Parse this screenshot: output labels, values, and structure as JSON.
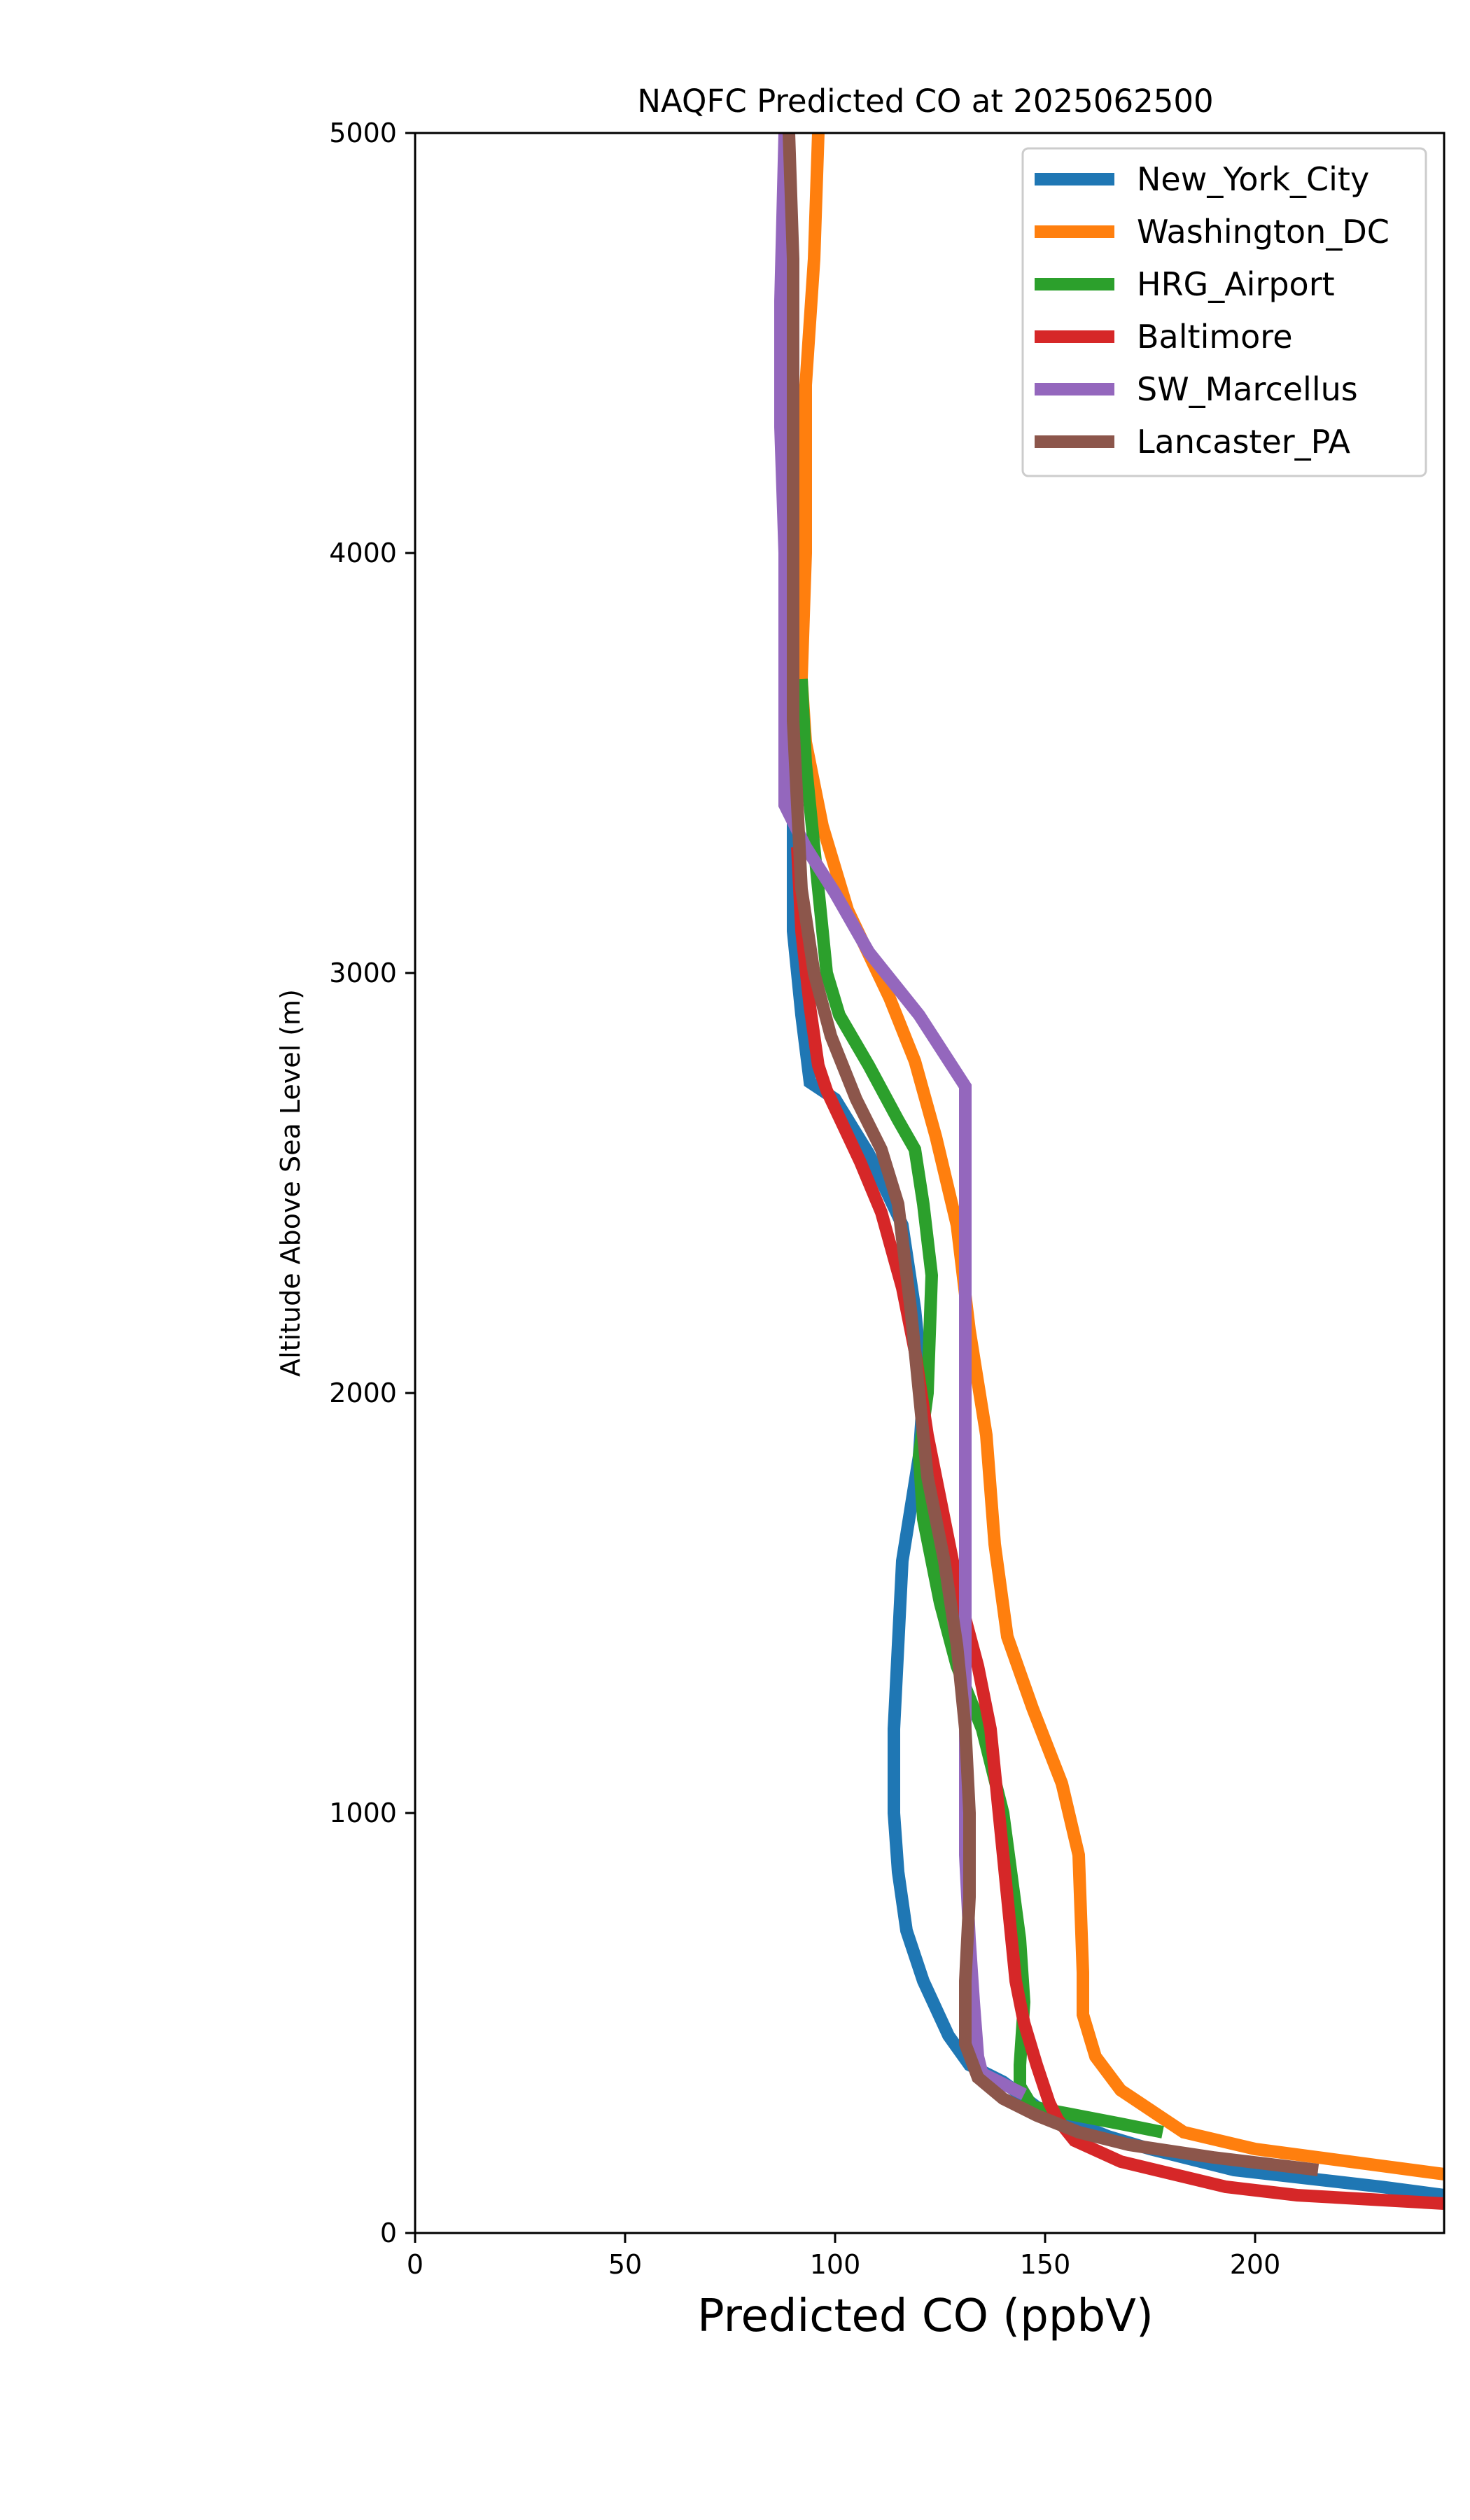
{
  "chart_data": {
    "type": "line",
    "title": "NAQFC Predicted CO at 2025062500",
    "xlabel": "Predicted CO (ppbV)",
    "ylabel": "Altitude Above Sea Level (m)",
    "xlim": [
      0,
      245
    ],
    "ylim": [
      0,
      5000
    ],
    "x_ticks": [
      0,
      50,
      100,
      150,
      200
    ],
    "y_ticks": [
      0,
      1000,
      2000,
      3000,
      4000,
      5000
    ],
    "x_tick_labels": [
      "0",
      "50",
      "100",
      "150",
      "200"
    ],
    "y_tick_labels": [
      "0",
      "1000",
      "2000",
      "3000",
      "4000",
      "5000"
    ],
    "grid": false,
    "legend_position": "top-right",
    "series": [
      {
        "name": "New_York_City",
        "color": "#1f77b4",
        "points": [
          [
            245,
            90
          ],
          [
            230,
            110
          ],
          [
            195,
            150
          ],
          [
            175,
            200
          ],
          [
            165,
            230
          ],
          [
            155,
            270
          ],
          [
            148,
            300
          ],
          [
            140,
            360
          ],
          [
            132,
            400
          ],
          [
            127,
            470
          ],
          [
            121,
            600
          ],
          [
            117,
            720
          ],
          [
            115,
            860
          ],
          [
            114,
            1000
          ],
          [
            114,
            1200
          ],
          [
            115,
            1400
          ],
          [
            116,
            1600
          ],
          [
            120,
            1850
          ],
          [
            121,
            2000
          ],
          [
            119,
            2200
          ],
          [
            116,
            2400
          ],
          [
            108,
            2570
          ],
          [
            100,
            2700
          ],
          [
            94,
            2740
          ],
          [
            92,
            2900
          ],
          [
            90,
            3100
          ],
          [
            90,
            3400
          ]
        ]
      },
      {
        "name": "Washington_DC",
        "color": "#ff7f0e",
        "points": [
          [
            245,
            140
          ],
          [
            230,
            160
          ],
          [
            200,
            200
          ],
          [
            183,
            240
          ],
          [
            168,
            340
          ],
          [
            162,
            420
          ],
          [
            159,
            520
          ],
          [
            159,
            620
          ],
          [
            158,
            900
          ],
          [
            154,
            1070
          ],
          [
            147,
            1250
          ],
          [
            141,
            1420
          ],
          [
            138,
            1640
          ],
          [
            136,
            1900
          ],
          [
            132,
            2150
          ],
          [
            129,
            2400
          ],
          [
            124,
            2610
          ],
          [
            119,
            2790
          ],
          [
            113,
            2940
          ],
          [
            103,
            3150
          ],
          [
            97,
            3350
          ],
          [
            93,
            3550
          ],
          [
            92,
            3700
          ],
          [
            93,
            4000
          ],
          [
            93,
            4400
          ],
          [
            95,
            4700
          ],
          [
            96,
            5000
          ]
        ]
      },
      {
        "name": "HRG_Airport",
        "color": "#2ca02c",
        "points": [
          [
            178,
            240
          ],
          [
            168,
            260
          ],
          [
            155,
            285
          ],
          [
            147,
            300
          ],
          [
            144,
            350
          ],
          [
            144,
            400
          ],
          [
            145,
            550
          ],
          [
            144,
            700
          ],
          [
            142,
            850
          ],
          [
            140,
            1000
          ],
          [
            135,
            1200
          ],
          [
            129,
            1350
          ],
          [
            125,
            1500
          ],
          [
            121,
            1700
          ],
          [
            120,
            1850
          ],
          [
            122,
            2000
          ],
          [
            123,
            2280
          ],
          [
            121,
            2450
          ],
          [
            119,
            2580
          ],
          [
            115,
            2650
          ],
          [
            108,
            2780
          ],
          [
            101,
            2900
          ],
          [
            98,
            3000
          ],
          [
            96,
            3200
          ],
          [
            93,
            3500
          ],
          [
            92,
            3700
          ]
        ]
      },
      {
        "name": "Baltimore",
        "color": "#d62728",
        "points": [
          [
            245,
            70
          ],
          [
            210,
            90
          ],
          [
            193,
            110
          ],
          [
            168,
            170
          ],
          [
            157,
            220
          ],
          [
            153,
            270
          ],
          [
            151,
            310
          ],
          [
            148,
            400
          ],
          [
            145,
            500
          ],
          [
            143,
            600
          ],
          [
            141,
            800
          ],
          [
            139,
            1000
          ],
          [
            137,
            1200
          ],
          [
            134,
            1350
          ],
          [
            130,
            1500
          ],
          [
            126,
            1700
          ],
          [
            122,
            1900
          ],
          [
            119,
            2100
          ],
          [
            116,
            2250
          ],
          [
            111,
            2430
          ],
          [
            106,
            2550
          ],
          [
            98,
            2720
          ],
          [
            96,
            2780
          ],
          [
            94,
            2920
          ],
          [
            92,
            3100
          ],
          [
            91,
            3300
          ]
        ]
      },
      {
        "name": "SW_Marcellus",
        "color": "#9467bd",
        "points": [
          [
            145,
            330
          ],
          [
            135,
            380
          ],
          [
            134,
            420
          ],
          [
            133,
            550
          ],
          [
            132,
            700
          ],
          [
            131,
            900
          ],
          [
            131,
            1100
          ],
          [
            131,
            1300
          ],
          [
            131,
            1600
          ],
          [
            131,
            1900
          ],
          [
            131,
            2200
          ],
          [
            131,
            2500
          ],
          [
            131,
            2730
          ],
          [
            120,
            2900
          ],
          [
            108,
            3050
          ],
          [
            100,
            3190
          ],
          [
            93,
            3300
          ],
          [
            88,
            3400
          ],
          [
            88,
            3700
          ],
          [
            88,
            4000
          ],
          [
            87,
            4300
          ],
          [
            87,
            4600
          ],
          [
            88,
            5000
          ]
        ]
      },
      {
        "name": "Lancaster_PA",
        "color": "#8c564b",
        "points": [
          [
            215,
            150
          ],
          [
            190,
            180
          ],
          [
            170,
            210
          ],
          [
            158,
            240
          ],
          [
            148,
            280
          ],
          [
            140,
            320
          ],
          [
            134,
            370
          ],
          [
            131,
            450
          ],
          [
            131,
            600
          ],
          [
            132,
            800
          ],
          [
            132,
            1000
          ],
          [
            131,
            1200
          ],
          [
            129,
            1400
          ],
          [
            126,
            1600
          ],
          [
            122,
            1800
          ],
          [
            120,
            2000
          ],
          [
            118,
            2200
          ],
          [
            115,
            2450
          ],
          [
            111,
            2580
          ],
          [
            105,
            2700
          ],
          [
            99,
            2850
          ],
          [
            95,
            3000
          ],
          [
            92,
            3200
          ],
          [
            91,
            3400
          ],
          [
            90,
            3600
          ],
          [
            90,
            3800
          ],
          [
            90,
            4100
          ],
          [
            90,
            4400
          ],
          [
            90,
            4700
          ],
          [
            89,
            5000
          ]
        ]
      }
    ]
  }
}
